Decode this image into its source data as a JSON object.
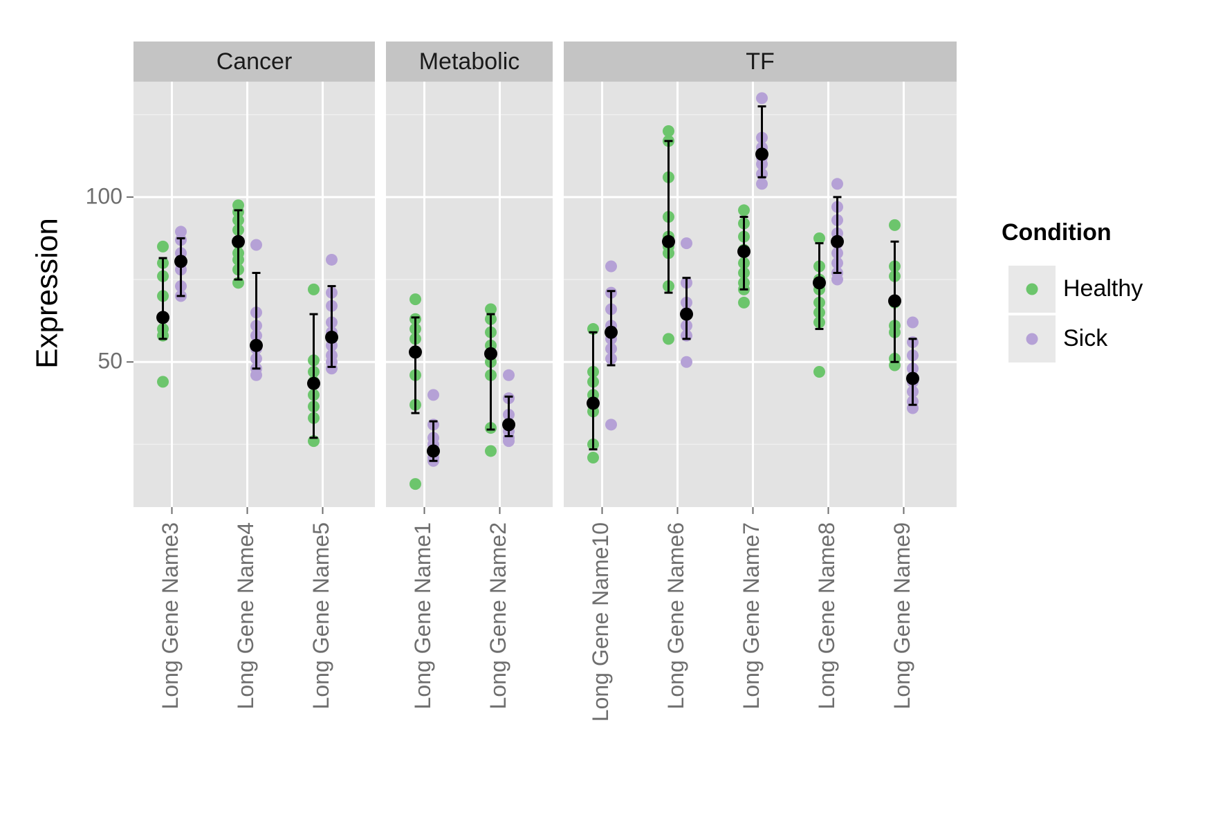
{
  "chart_data": {
    "type": "scatter",
    "ylabel": "Expression",
    "xlabel": "",
    "ylim": [
      6,
      135
    ],
    "yticks": [
      50,
      100
    ],
    "grid": true,
    "legend": {
      "title": "Condition",
      "placement": "right",
      "entries": [
        {
          "name": "Healthy",
          "color": "#6cc56c"
        },
        {
          "name": "Sick",
          "color": "#b5a1d6"
        }
      ]
    },
    "summary_color": "#000000",
    "panels": [
      {
        "name": "Cancer",
        "categories": [
          "Long Gene Name3",
          "Long Gene Name4",
          "Long Gene Name5"
        ],
        "groups": [
          {
            "condition": "Healthy",
            "points": [
              85,
              80,
              76,
              70,
              60,
              58,
              44
            ],
            "mean": 63.5,
            "lower": 57,
            "upper": 81.5
          },
          {
            "condition": "Sick",
            "points": [
              89.5,
              87,
              83,
              80,
              78,
              73,
              70
            ],
            "mean": 80.5,
            "lower": 70,
            "upper": 87.5
          },
          {
            "condition": "Healthy",
            "points": [
              97.5,
              95.5,
              93,
              90,
              86,
              83,
              81,
              78,
              74
            ],
            "mean": 86.5,
            "lower": 75,
            "upper": 96
          },
          {
            "condition": "Sick",
            "points": [
              85.5,
              65,
              61,
              58,
              54,
              51,
              48,
              46
            ],
            "mean": 55,
            "lower": 48,
            "upper": 77
          },
          {
            "condition": "Healthy",
            "points": [
              72,
              50.5,
              47,
              44,
              40,
              36.5,
              33,
              26
            ],
            "mean": 43.5,
            "lower": 27,
            "upper": 64.5
          },
          {
            "condition": "Sick",
            "points": [
              81,
              71,
              67,
              62,
              59,
              55,
              52,
              50,
              48
            ],
            "mean": 57.5,
            "lower": 48.5,
            "upper": 73
          }
        ]
      },
      {
        "name": "Metabolic",
        "categories": [
          "Long Gene Name1",
          "Long Gene Name2"
        ],
        "groups": [
          {
            "condition": "Healthy",
            "points": [
              69,
              63,
              60,
              57,
              53,
              46,
              37,
              13
            ],
            "mean": 53,
            "lower": 34.5,
            "upper": 63.5
          },
          {
            "condition": "Sick",
            "points": [
              40,
              31,
              27,
              25,
              23,
              21,
              20
            ],
            "mean": 23,
            "lower": 20,
            "upper": 32
          },
          {
            "condition": "Healthy",
            "points": [
              66,
              63,
              59,
              55,
              50,
              46,
              30,
              23
            ],
            "mean": 52.5,
            "lower": 29.5,
            "upper": 64.5
          },
          {
            "condition": "Sick",
            "points": [
              46,
              39,
              34,
              31,
              29,
              27,
              26
            ],
            "mean": 31,
            "lower": 27.5,
            "upper": 39.5
          }
        ]
      },
      {
        "name": "TF",
        "categories": [
          "Long Gene Name10",
          "Long Gene Name6",
          "Long Gene Name7",
          "Long Gene Name8",
          "Long Gene Name9"
        ],
        "groups": [
          {
            "condition": "Healthy",
            "points": [
              60,
              47,
              44,
              40,
              37,
              35,
              25,
              21
            ],
            "mean": 37.5,
            "lower": 23.5,
            "upper": 59
          },
          {
            "condition": "Sick",
            "points": [
              79,
              71,
              66,
              61,
              57,
              54,
              51,
              31
            ],
            "mean": 59,
            "lower": 49,
            "upper": 71.5
          },
          {
            "condition": "Healthy",
            "points": [
              120,
              117,
              106,
              94,
              88,
              85,
              83,
              73,
              57
            ],
            "mean": 86.5,
            "lower": 71,
            "upper": 117
          },
          {
            "condition": "Sick",
            "points": [
              86,
              74,
              68,
              65,
              61,
              58,
              50
            ],
            "mean": 64.5,
            "lower": 57,
            "upper": 75.5
          },
          {
            "condition": "Healthy",
            "points": [
              96,
              92,
              88,
              84,
              80,
              77,
              74,
              72,
              68
            ],
            "mean": 83.5,
            "lower": 72,
            "upper": 94
          },
          {
            "condition": "Sick",
            "points": [
              130,
              118,
              115,
              112,
              110,
              107,
              104
            ],
            "mean": 113,
            "lower": 106,
            "upper": 127.5
          },
          {
            "condition": "Healthy",
            "points": [
              87.5,
              79,
              75,
              72,
              68,
              65,
              62,
              47
            ],
            "mean": 74,
            "lower": 60,
            "upper": 86
          },
          {
            "condition": "Sick",
            "points": [
              104,
              97,
              93,
              89,
              86,
              83,
              80,
              77,
              75
            ],
            "mean": 86.5,
            "lower": 77,
            "upper": 100
          },
          {
            "condition": "Healthy",
            "points": [
              91.5,
              79,
              76,
              68,
              61,
              59,
              51,
              49
            ],
            "mean": 68.5,
            "lower": 50,
            "upper": 86.5
          },
          {
            "condition": "Sick",
            "points": [
              62,
              56,
              52,
              48,
              44,
              41,
              38,
              36
            ],
            "mean": 45,
            "lower": 37,
            "upper": 57
          }
        ]
      }
    ]
  }
}
